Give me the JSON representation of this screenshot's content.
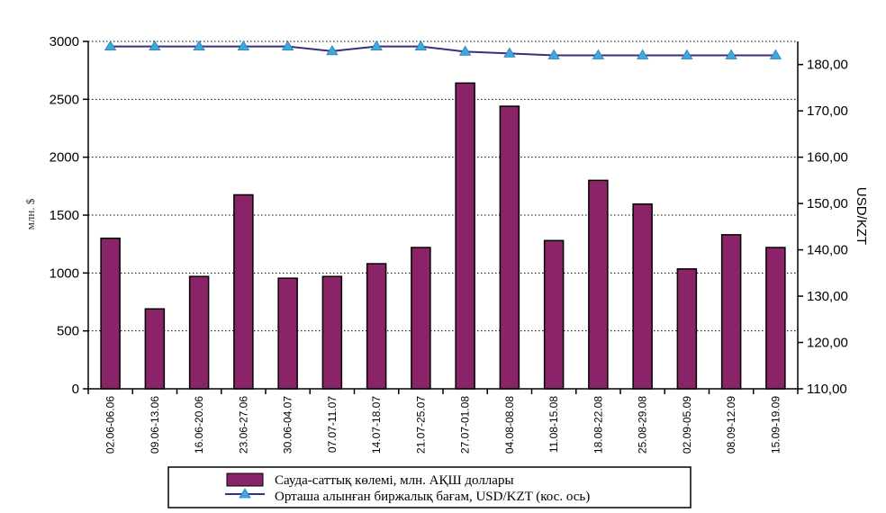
{
  "chart_data": {
    "type": "bar",
    "title": "",
    "categories": [
      "02.06-06.06",
      "09.06-13.06",
      "16.06-20.06",
      "23.06-27.06",
      "30.06-04.07",
      "07.07-11.07",
      "14.07-18.07",
      "21.07-25.07",
      "27.07-01.08",
      "04.08-08.08",
      "11.08-15.08",
      "18.08-22.08",
      "25.08-29.08",
      "02.09-05.09",
      "08.09-12.09",
      "15.09-19.09"
    ],
    "series": [
      {
        "name": "Сауда-саттық көлемі, млн. АҚШ доллары",
        "type": "bar",
        "axis": "left",
        "color": "#8B2368",
        "values": [
          1300,
          690,
          970,
          1675,
          955,
          970,
          1080,
          1220,
          2640,
          2440,
          1280,
          1800,
          1595,
          1035,
          1330,
          1220
        ]
      },
      {
        "name": "Орташа алынған биржалық бағам, USD/KZT (кос. ось)",
        "type": "line",
        "axis": "right",
        "color": "#3A2E7E",
        "marker_color": "#3FA9DF",
        "values": [
          183.9,
          183.9,
          183.9,
          183.9,
          183.9,
          182.9,
          183.9,
          183.9,
          182.8,
          182.4,
          182.0,
          182.0,
          182.0,
          182.0,
          182.0,
          182.0
        ]
      }
    ],
    "ylabel": "млн. $",
    "y2label": "USD/KZT",
    "ylim": [
      0,
      3000
    ],
    "yticks": [
      "0",
      "500",
      "1000",
      "1500",
      "2000",
      "2500",
      "3000"
    ],
    "y2lim": [
      110,
      185
    ],
    "y2ticks": [
      "110,00",
      "120,00",
      "130,00",
      "140,00",
      "150,00",
      "160,00",
      "170,00",
      "180,00"
    ],
    "grid": true
  },
  "legend": {
    "bar_label": "Сауда-саттық көлемі, млн. АҚШ доллары",
    "line_label": "Орташа алынған биржалық бағам, USD/KZT (кос. ось)"
  }
}
